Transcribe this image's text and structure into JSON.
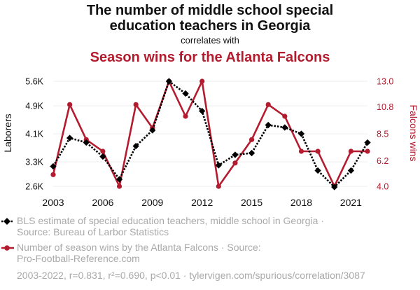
{
  "chart_data": {
    "type": "line",
    "title_line1": "The number of middle school special",
    "title_line2": "education teachers in Georgia",
    "connector": "correlates with",
    "title_red": "Season wins for the Atlanta Falcons",
    "ylabel_left": "Laborers",
    "ylabel_right": "Falcons wins",
    "x": [
      2003,
      2004,
      2005,
      2006,
      2007,
      2008,
      2009,
      2010,
      2011,
      2012,
      2013,
      2014,
      2015,
      2016,
      2017,
      2018,
      2019,
      2020,
      2021,
      2022
    ],
    "x_ticks": [
      2003,
      2006,
      2009,
      2012,
      2015,
      2018,
      2021
    ],
    "x_tick_labels": [
      "2003",
      "2006",
      "2009",
      "2012",
      "2015",
      "2018",
      "2021"
    ],
    "y_left_ticks": [
      2600,
      3300,
      4100,
      4900,
      5600
    ],
    "y_left_tick_labels": [
      "2.6K",
      "3.3K",
      "4.1K",
      "4.9K",
      "5.6K"
    ],
    "y_right_ticks": [
      4.0,
      6.2,
      8.5,
      10.8,
      13.0
    ],
    "y_right_tick_labels": [
      "4.0",
      "6.2",
      "8.5",
      "10.8",
      "13.0"
    ],
    "ylim_left": [
      2600,
      5600
    ],
    "ylim_right": [
      4.0,
      13.0
    ],
    "series": [
      {
        "name": "BLS estimate of special education teachers, middle school in Georgia",
        "axis": "left",
        "color": "#000000",
        "values": [
          3170,
          3980,
          3850,
          3450,
          2800,
          3750,
          4200,
          5600,
          5250,
          4750,
          3200,
          3500,
          3550,
          4350,
          4280,
          4100,
          3050,
          2580,
          3050,
          3850
        ]
      },
      {
        "name": "Number of season wins by the Atlanta Falcons",
        "axis": "right",
        "color": "#b31b2e",
        "values": [
          5,
          11,
          8,
          7,
          4,
          11,
          9,
          13,
          10,
          13,
          4,
          6,
          8,
          11,
          10,
          7,
          7,
          4,
          7,
          7
        ]
      }
    ],
    "legend": [
      {
        "line1": "BLS estimate of special education teachers, middle school in Georgia ·",
        "line2": "Source: Bureau of Larbor Statistics"
      },
      {
        "line1": "Number of season wins by the Atlanta Falcons · Source:",
        "line2": "Pro-Football-Reference.com"
      }
    ],
    "footer": "2003-2022, r=0.831, r²=0.690, p<0.01 · tylervigen.com/spurious/correlation/3087",
    "grid": true
  }
}
